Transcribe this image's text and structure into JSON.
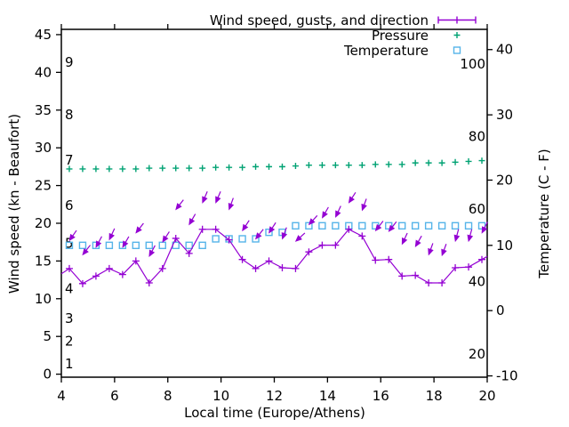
{
  "chart_data": {
    "type": "line",
    "title": "",
    "xlabel": "Local time (Europe/Athens)",
    "grid": false,
    "background": "#ffffff",
    "x_axis": {
      "range": [
        4,
        20
      ],
      "ticks": [
        4,
        6,
        8,
        10,
        12,
        14,
        16,
        18,
        20
      ]
    },
    "left_axis": {
      "label": "Wind speed (kn - Beaufort)",
      "unit": "kn",
      "range": [
        -0.4,
        45.7
      ],
      "ticks": [
        0,
        5,
        10,
        15,
        20,
        25,
        30,
        35,
        40,
        45
      ],
      "beaufort_values": [
        1,
        2,
        3,
        4,
        5,
        6,
        7,
        8,
        9
      ],
      "beaufort_kn_positions": [
        1,
        4,
        7,
        11,
        17,
        22,
        28,
        34,
        41
      ]
    },
    "right_axis": {
      "label": "Temperature (C - F)",
      "unit": "C",
      "range_c": [
        -10.2,
        43.1
      ],
      "ticks_c": [
        -10,
        0,
        10,
        20,
        30,
        40
      ],
      "fahrenheit_labels": [
        20,
        40,
        60,
        80,
        100
      ]
    },
    "x": [
      4.3,
      4.8,
      5.3,
      5.8,
      6.3,
      6.8,
      7.3,
      7.8,
      8.3,
      8.8,
      9.3,
      9.8,
      10.3,
      10.8,
      11.3,
      11.8,
      12.3,
      12.8,
      13.3,
      13.8,
      14.3,
      14.8,
      15.3,
      15.8,
      16.3,
      16.8,
      17.3,
      17.8,
      18.3,
      18.8,
      19.3,
      19.8
    ],
    "series": [
      {
        "name": "Wind speed, gusts, and direction",
        "axis": "left",
        "color": "#9400d3",
        "wind_kn": [
          14,
          12,
          13,
          14,
          13.2,
          15,
          12.1,
          14,
          18,
          16,
          19.2,
          19.2,
          17.8,
          15.2,
          14,
          15,
          14.1,
          14,
          16.2,
          17.1,
          17.1,
          19.2,
          18.3,
          15.1,
          15.2,
          13,
          13.1,
          12.1,
          12.1,
          14.1,
          14.2,
          15.2
        ],
        "gust_kn": [
          17.7,
          15.8,
          16.8,
          17.8,
          16.8,
          18.7,
          15.6,
          17.5,
          21.8,
          19.8,
          22.7,
          22.7,
          21.8,
          19,
          17.9,
          18.7,
          17.9,
          17.6,
          19.8,
          20.7,
          20.8,
          22.7,
          21.7,
          19,
          18.9,
          17.2,
          16.9,
          15.8,
          15.7,
          17.6,
          17.6,
          18.7
        ],
        "gust_direction_deg": [
          215,
          218,
          208,
          205,
          210,
          218,
          208,
          213,
          218,
          210,
          203,
          203,
          200,
          213,
          218,
          213,
          200,
          228,
          222,
          210,
          205,
          213,
          200,
          218,
          218,
          205,
          210,
          200,
          200,
          195,
          195,
          207
        ],
        "line_edge_start": [
          4.0,
          13.3
        ],
        "line_edge_end": [
          20.0,
          15.6
        ]
      },
      {
        "name": "Pressure",
        "axis": "left-unlabeled",
        "color": "#00a273",
        "y_on_left_axis": [
          27.2,
          27.2,
          27.2,
          27.2,
          27.2,
          27.2,
          27.3,
          27.3,
          27.3,
          27.3,
          27.3,
          27.4,
          27.4,
          27.4,
          27.5,
          27.5,
          27.5,
          27.6,
          27.7,
          27.7,
          27.7,
          27.7,
          27.7,
          27.8,
          27.8,
          27.8,
          28,
          28,
          28,
          28.1,
          28.2,
          28.3
        ]
      },
      {
        "name": "Temperature",
        "axis": "right",
        "color": "#56b4e9",
        "temp_c": [
          10,
          10,
          10,
          10,
          10,
          10,
          10,
          10,
          10,
          10,
          10,
          11,
          11,
          11,
          11,
          12,
          12,
          13,
          13,
          13,
          13,
          13,
          13,
          13,
          13,
          13,
          13,
          13,
          13,
          13,
          13,
          13
        ]
      }
    ],
    "legend": [
      {
        "label": "Wind speed, gusts, and direction",
        "marker": "errorbar",
        "color": "#9400d3"
      },
      {
        "label": "Pressure",
        "marker": "plus",
        "color": "#00a273"
      },
      {
        "label": "Temperature",
        "marker": "square",
        "color": "#56b4e9"
      }
    ],
    "legend_position": "top-right"
  }
}
